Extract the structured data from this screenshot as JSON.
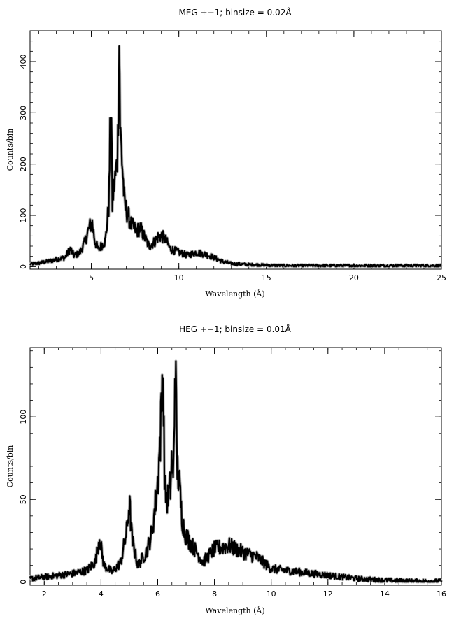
{
  "chart_data": [
    {
      "type": "line",
      "title": "MEG +−1; binsize = 0.02Å",
      "xlabel": "Wavelength (Å)",
      "ylabel": "Counts/bin",
      "xlim": [
        1.5,
        25
      ],
      "ylim": [
        -5,
        460
      ],
      "xticks": [
        5,
        10,
        15,
        20,
        25
      ],
      "yticks": [
        0,
        100,
        200,
        300,
        400
      ],
      "x_minor_step": 1,
      "y_minor_step": 20,
      "grid": false,
      "series": [
        {
          "x": [
            1.5,
            2.0,
            2.5,
            3.0,
            3.5,
            3.8,
            4.0,
            4.3,
            4.6,
            4.9,
            5.05,
            5.2,
            5.4,
            5.6,
            5.8,
            6.0,
            6.1,
            6.15,
            6.2,
            6.3,
            6.4,
            6.5,
            6.6,
            6.65,
            6.7,
            6.8,
            6.9,
            7.1,
            7.3,
            7.6,
            7.8,
            8.0,
            8.3,
            8.6,
            8.8,
            9.0,
            9.2,
            9.5,
            10.0,
            10.5,
            11.0,
            11.5,
            12.0,
            12.5,
            13.0,
            14.0,
            15.0,
            16.0,
            18.0,
            20.0,
            22.0,
            25.0
          ],
          "y": [
            5,
            7,
            10,
            14,
            18,
            35,
            22,
            25,
            45,
            78,
            85,
            50,
            33,
            42,
            50,
            120,
            300,
            280,
            120,
            160,
            180,
            220,
            450,
            260,
            240,
            180,
            120,
            100,
            80,
            70,
            75,
            60,
            40,
            48,
            58,
            60,
            55,
            35,
            28,
            22,
            28,
            24,
            18,
            10,
            6,
            4,
            3,
            2,
            2,
            2,
            2,
            2
          ]
        }
      ]
    },
    {
      "type": "line",
      "title": "HEG +−1; binsize = 0.01Å",
      "xlabel": "Wavelength (Å)",
      "ylabel": "Counts/bin",
      "xlim": [
        1.5,
        16
      ],
      "ylim": [
        -2,
        142
      ],
      "xticks": [
        2,
        4,
        6,
        8,
        10,
        12,
        14,
        16
      ],
      "yticks": [
        0,
        50,
        100
      ],
      "x_minor_step": 0.5,
      "y_minor_step": 10,
      "grid": false,
      "series": [
        {
          "x": [
            1.5,
            2.0,
            2.5,
            3.0,
            3.5,
            3.8,
            3.95,
            4.1,
            4.4,
            4.7,
            4.9,
            5.0,
            5.1,
            5.3,
            5.6,
            5.8,
            6.0,
            6.1,
            6.18,
            6.25,
            6.35,
            6.45,
            6.5,
            6.55,
            6.62,
            6.68,
            6.75,
            6.85,
            6.95,
            7.1,
            7.3,
            7.6,
            8.0,
            8.5,
            9.0,
            9.5,
            10.0,
            10.5,
            11.0,
            11.5,
            12.0,
            12.5,
            13.0,
            13.5,
            14.0,
            15.0,
            16.0
          ],
          "y": [
            2,
            3,
            4,
            5,
            7,
            12,
            27,
            10,
            6,
            12,
            30,
            48,
            25,
            10,
            18,
            30,
            60,
            90,
            132,
            55,
            50,
            58,
            75,
            58,
            140,
            70,
            62,
            40,
            30,
            25,
            20,
            12,
            20,
            22,
            18,
            15,
            8,
            7,
            6,
            5,
            4,
            3,
            2,
            1.5,
            1,
            0.5,
            0.5
          ]
        }
      ]
    }
  ]
}
